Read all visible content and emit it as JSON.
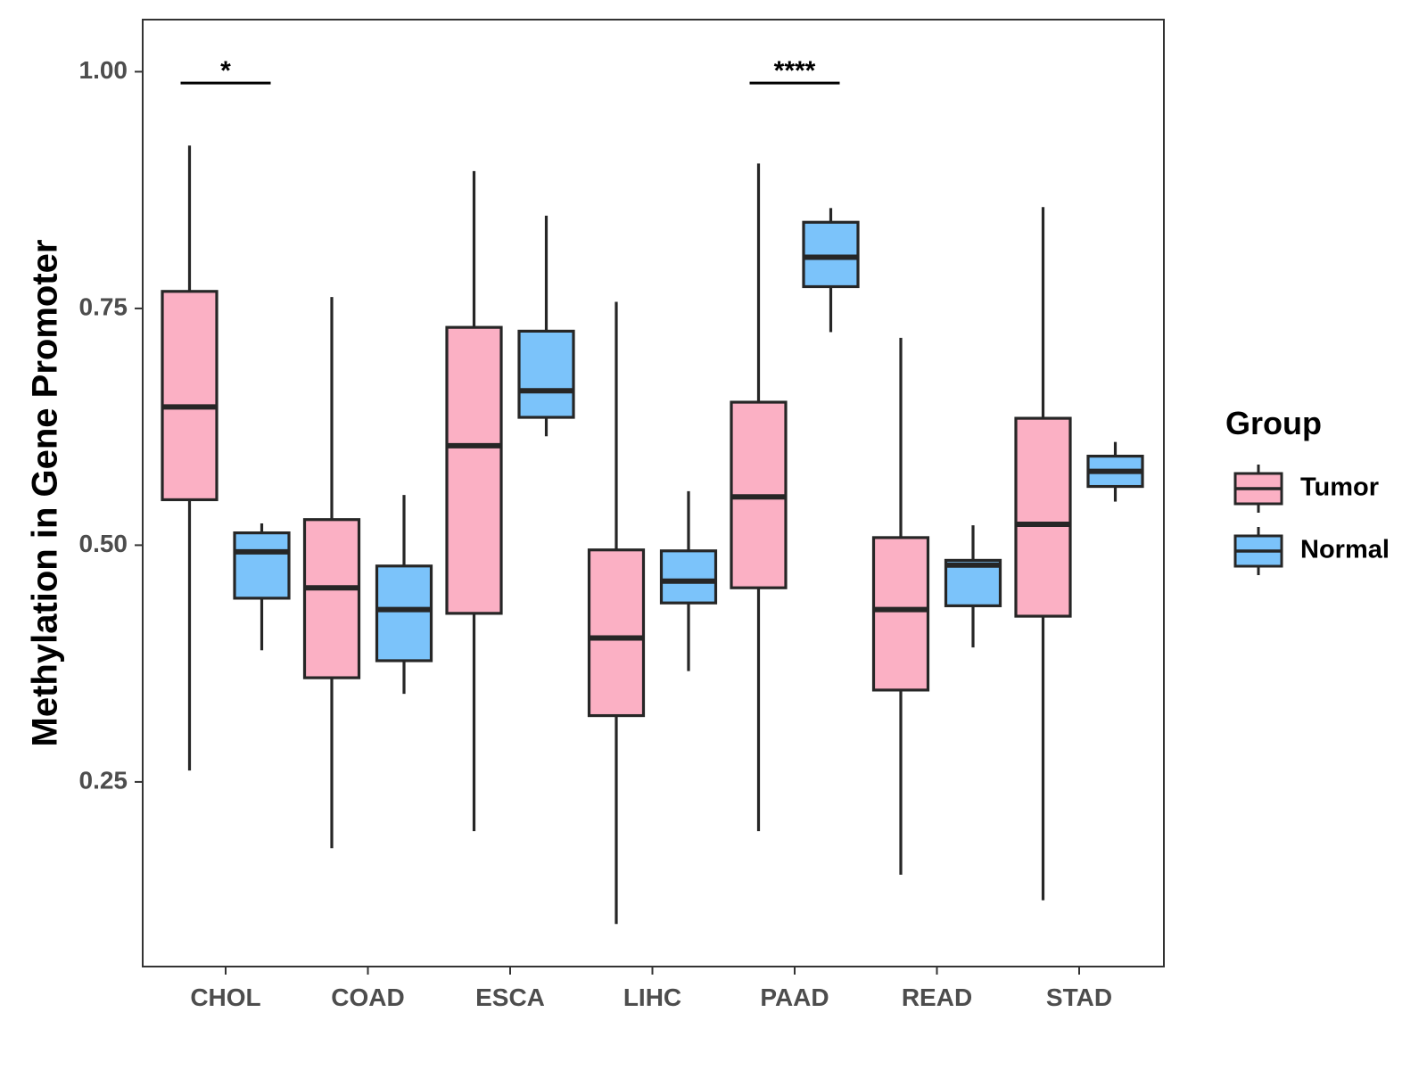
{
  "chart_data": {
    "type": "boxplot",
    "title": "",
    "xlabel": "",
    "ylabel": "Methylation in Gene Promoter",
    "ylim": [
      0.055,
      1.055
    ],
    "yticks": [
      0.25,
      0.5,
      0.75,
      1.0
    ],
    "ytick_labels": [
      "0.25",
      "0.50",
      "0.75",
      "1.00"
    ],
    "grid": false,
    "categories": [
      "CHOL",
      "COAD",
      "ESCA",
      "LIHC",
      "PAAD",
      "READ",
      "STAD"
    ],
    "legend": {
      "title": "Group",
      "placement": "right",
      "entries": [
        "Tumor",
        "Normal"
      ]
    },
    "series": [
      {
        "name": "Tumor",
        "color": "#FBB0C4",
        "boxes": [
          {
            "whisker_low": 0.262,
            "q1": 0.548,
            "median": 0.646,
            "q3": 0.768,
            "whisker_high": 0.922
          },
          {
            "whisker_low": 0.18,
            "q1": 0.36,
            "median": 0.455,
            "q3": 0.527,
            "whisker_high": 0.762
          },
          {
            "whisker_low": 0.198,
            "q1": 0.428,
            "median": 0.605,
            "q3": 0.73,
            "whisker_high": 0.895
          },
          {
            "whisker_low": 0.1,
            "q1": 0.32,
            "median": 0.402,
            "q3": 0.495,
            "whisker_high": 0.757
          },
          {
            "whisker_low": 0.198,
            "q1": 0.455,
            "median": 0.551,
            "q3": 0.651,
            "whisker_high": 0.903
          },
          {
            "whisker_low": 0.152,
            "q1": 0.347,
            "median": 0.432,
            "q3": 0.508,
            "whisker_high": 0.719
          },
          {
            "whisker_low": 0.125,
            "q1": 0.425,
            "median": 0.522,
            "q3": 0.634,
            "whisker_high": 0.857
          }
        ]
      },
      {
        "name": "Normal",
        "color": "#7BC3FA",
        "boxes": [
          {
            "whisker_low": 0.389,
            "q1": 0.444,
            "median": 0.493,
            "q3": 0.513,
            "whisker_high": 0.523
          },
          {
            "whisker_low": 0.343,
            "q1": 0.378,
            "median": 0.432,
            "q3": 0.478,
            "whisker_high": 0.553
          },
          {
            "whisker_low": 0.615,
            "q1": 0.635,
            "median": 0.663,
            "q3": 0.726,
            "whisker_high": 0.848
          },
          {
            "whisker_low": 0.367,
            "q1": 0.439,
            "median": 0.462,
            "q3": 0.494,
            "whisker_high": 0.557
          },
          {
            "whisker_low": 0.725,
            "q1": 0.773,
            "median": 0.804,
            "q3": 0.841,
            "whisker_high": 0.856
          },
          {
            "whisker_low": 0.392,
            "q1": 0.436,
            "median": 0.479,
            "q3": 0.484,
            "whisker_high": 0.521
          },
          {
            "whisker_low": 0.546,
            "q1": 0.562,
            "median": 0.578,
            "q3": 0.594,
            "whisker_high": 0.609
          }
        ]
      }
    ],
    "annotations": [
      {
        "category": "CHOL",
        "label": "*",
        "y": 0.988
      },
      {
        "category": "PAAD",
        "label": "****",
        "y": 0.988
      }
    ]
  }
}
